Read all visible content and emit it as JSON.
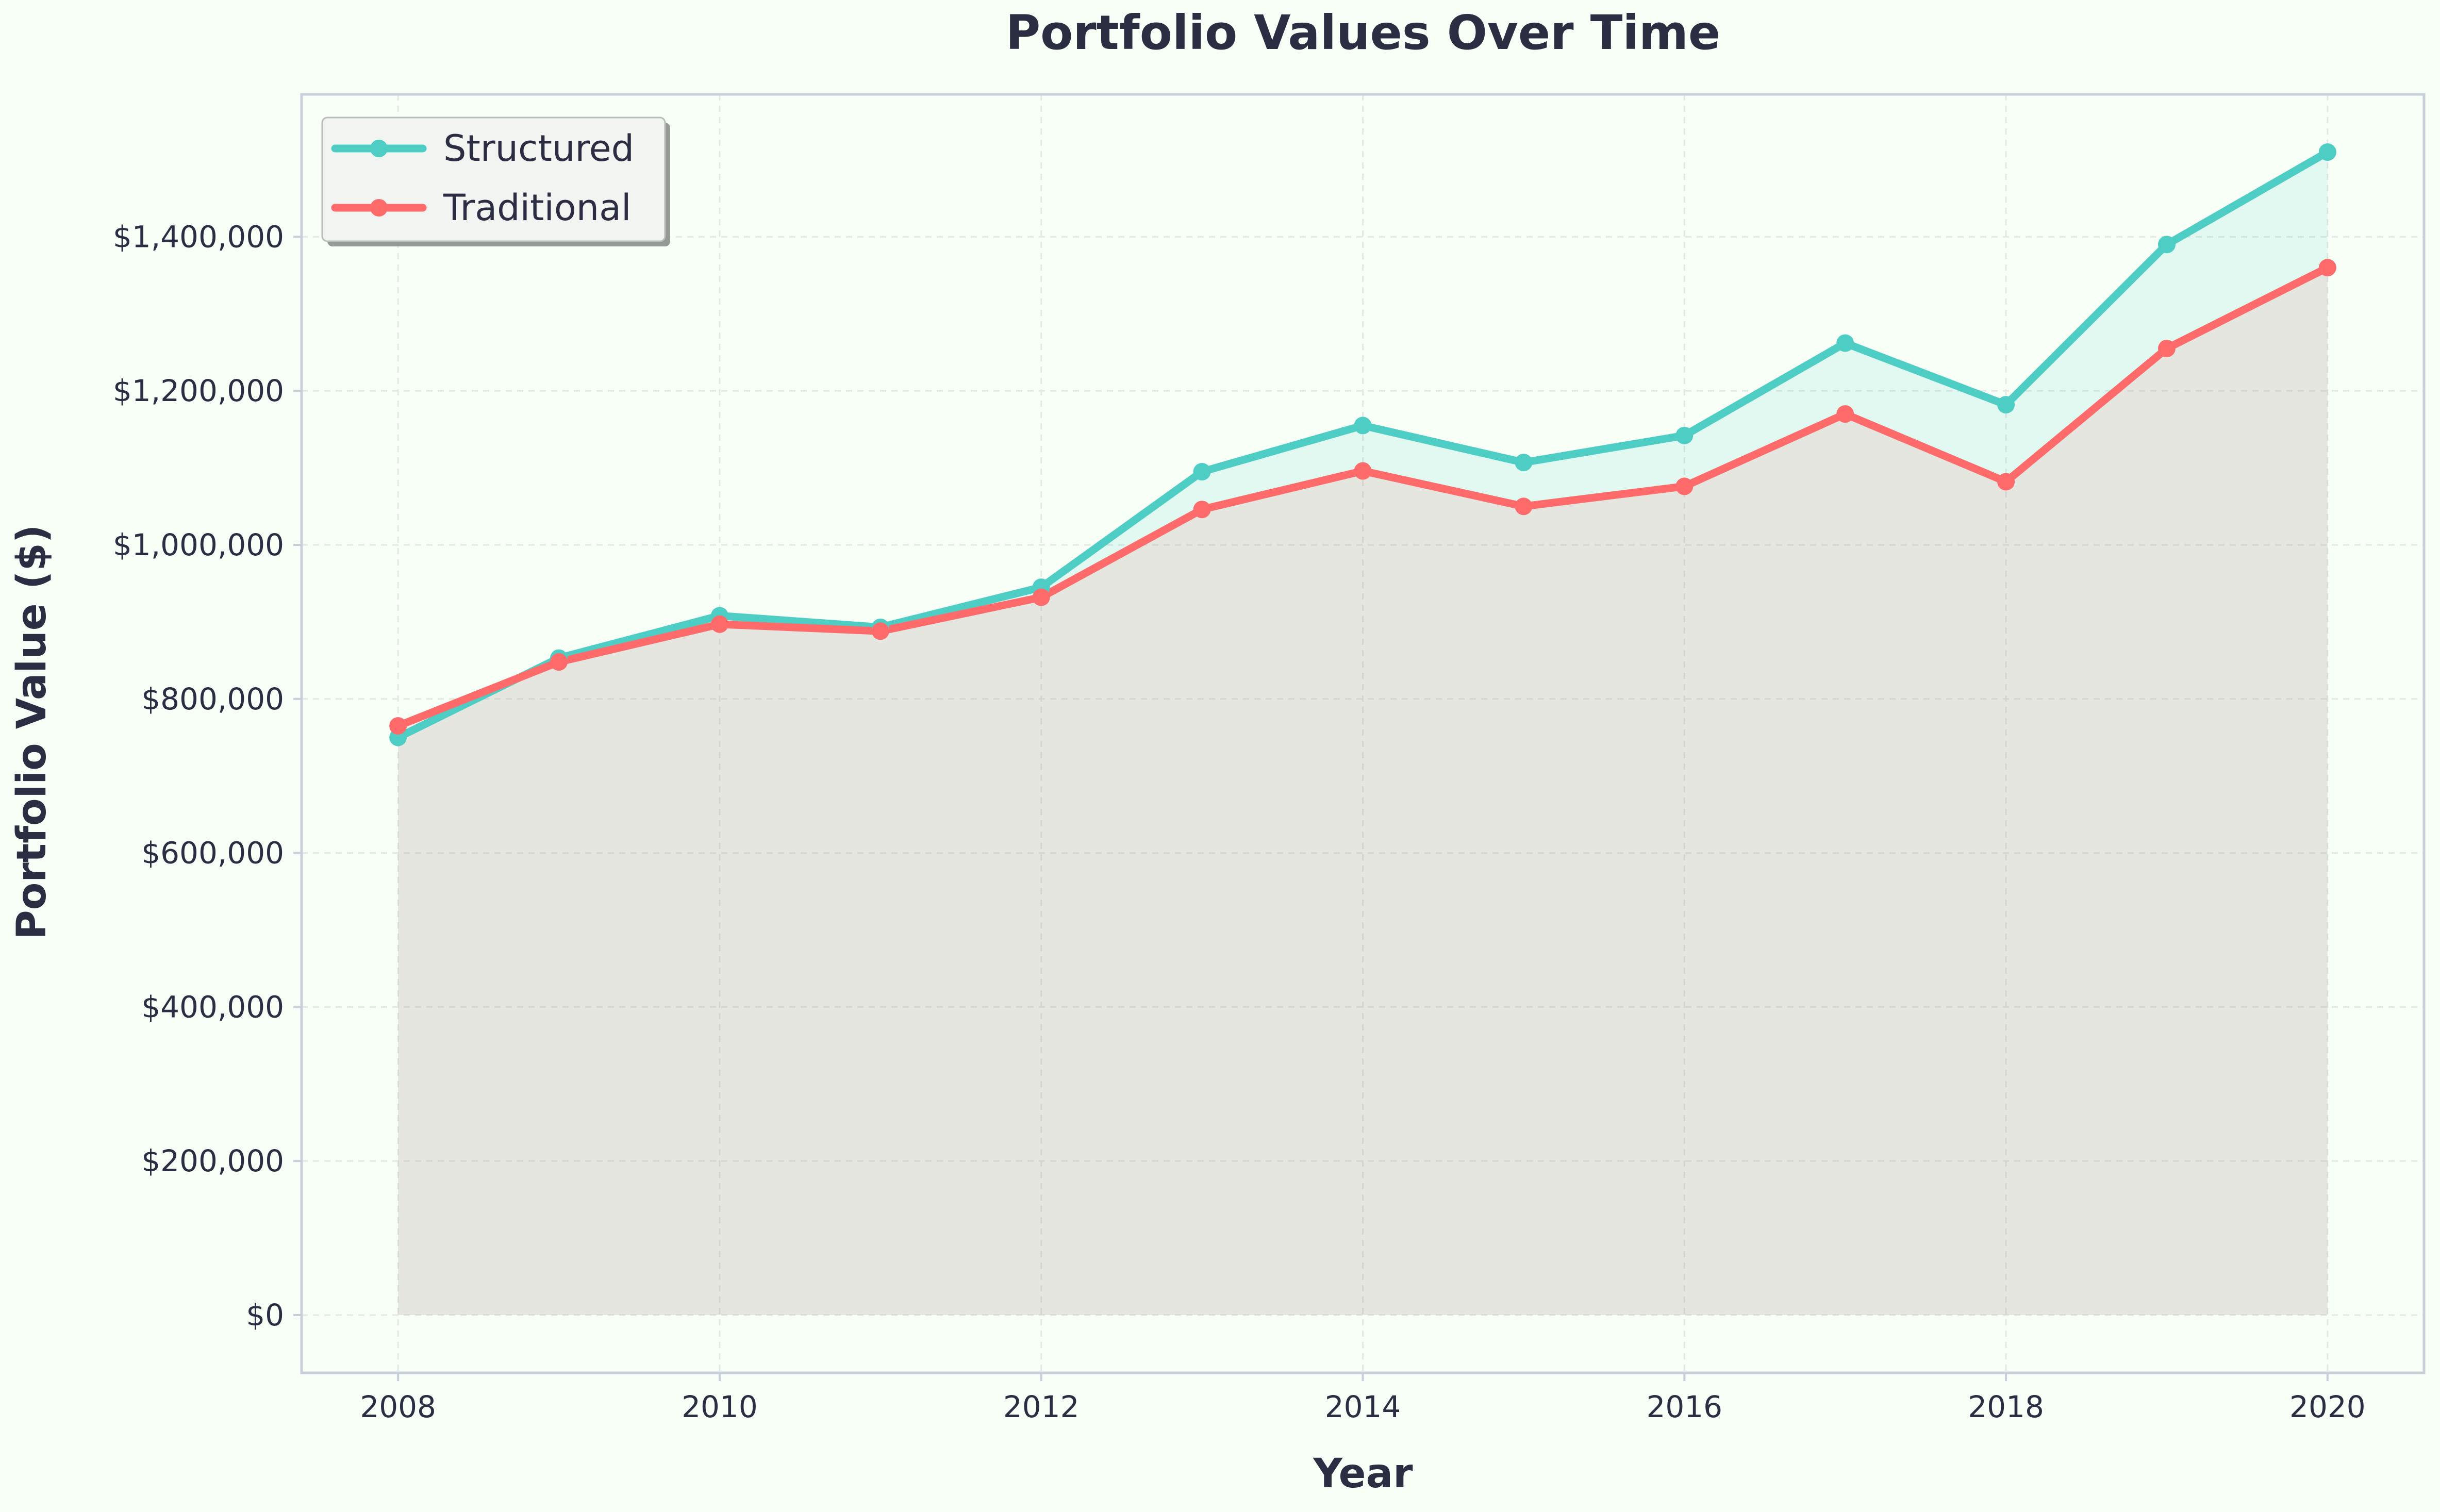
{
  "chart_data": {
    "type": "line",
    "title": "Portfolio Values Over Time",
    "xlabel": "Year",
    "ylabel": "Portfolio Value ($)",
    "x": [
      2008,
      2009,
      2010,
      2011,
      2012,
      2013,
      2014,
      2015,
      2016,
      2017,
      2018,
      2019,
      2020
    ],
    "series": [
      {
        "name": "Structured",
        "color": "#4ecdc4",
        "values": [
          750000,
          853000,
          908000,
          893000,
          945000,
          1095000,
          1155000,
          1107000,
          1142000,
          1262000,
          1182000,
          1390000,
          1510000
        ]
      },
      {
        "name": "Traditional",
        "color": "#ff6b6b",
        "values": [
          765000,
          848000,
          897000,
          888000,
          932000,
          1046000,
          1096000,
          1050000,
          1076000,
          1170000,
          1082000,
          1255000,
          1360000
        ]
      }
    ],
    "xticks": [
      "2008",
      "2010",
      "2012",
      "2014",
      "2016",
      "2018",
      "2020"
    ],
    "yticks": [
      "$0",
      "$200,000",
      "$400,000",
      "$600,000",
      "$800,000",
      "$1,000,000",
      "$1,200,000",
      "$1,400,000"
    ],
    "xlim": [
      2007.4,
      2020.6
    ],
    "ylim": [
      -75000,
      1585000
    ],
    "grid": true,
    "legend_position": "top-left"
  },
  "colors": {
    "background": "#f7fff7",
    "text": "#2b2d42",
    "spine": "#c9cfd8",
    "grid": "#e3e8e3",
    "fill_structured": "#4ecdc4",
    "fill_traditional": "#ff6b6b",
    "legend_bg": "#f2f4f2"
  }
}
